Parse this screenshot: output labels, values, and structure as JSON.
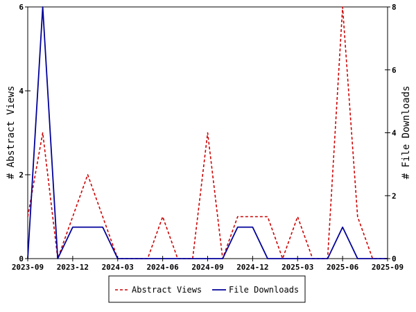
{
  "chart_data": {
    "type": "line",
    "x": [
      "2023-09",
      "2023-10",
      "2023-11",
      "2023-12",
      "2024-01",
      "2024-02",
      "2024-03",
      "2024-04",
      "2024-05",
      "2024-06",
      "2024-07",
      "2024-08",
      "2024-09",
      "2024-10",
      "2024-11",
      "2024-12",
      "2025-01",
      "2025-02",
      "2025-03",
      "2025-04",
      "2025-05",
      "2025-06",
      "2025-07",
      "2025-08",
      "2025-09"
    ],
    "x_ticks": [
      "2023-09",
      "2023-12",
      "2024-03",
      "2024-06",
      "2024-09",
      "2024-12",
      "2025-03",
      "2025-06",
      "2025-09"
    ],
    "series": [
      {
        "name": "Abstract Views",
        "axis": "left",
        "color": "#cc0000",
        "dash": "dashed",
        "values": [
          1,
          3,
          0,
          1,
          2,
          1,
          0,
          0,
          0,
          1,
          0,
          0,
          3,
          0,
          1,
          1,
          1,
          0,
          1,
          0,
          0,
          6,
          1,
          0,
          0
        ]
      },
      {
        "name": "File Downloads",
        "axis": "right",
        "color": "#000099",
        "dash": "solid",
        "values": [
          0,
          8,
          0,
          1,
          1,
          1,
          0,
          0,
          0,
          0,
          0,
          0,
          0,
          0,
          1,
          1,
          0,
          0,
          0,
          0,
          0,
          1,
          0,
          0,
          0
        ]
      }
    ],
    "ylabel_left": "# Abstract Views",
    "ylabel_right": "# File Downloads",
    "ylim_left": [
      0,
      6
    ],
    "ylim_right": [
      0,
      8
    ],
    "yticks_left": [
      0,
      2,
      4,
      6
    ],
    "yticks_right": [
      0,
      2,
      4,
      6,
      8
    ],
    "legend_position": "bottom",
    "grid": false
  }
}
